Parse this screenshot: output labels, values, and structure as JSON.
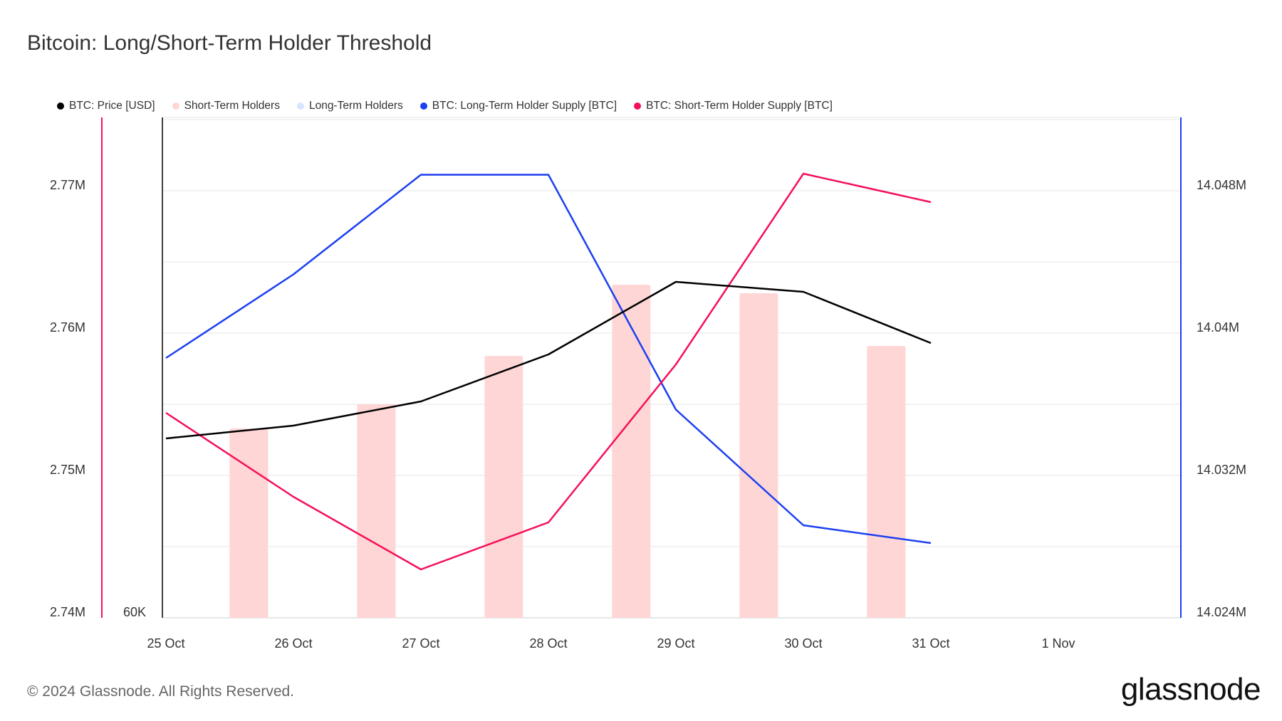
{
  "title": "Bitcoin: Long/Short-Term Holder Threshold",
  "footer": "© 2024 Glassnode. All Rights Reserved.",
  "logo": "glassnode",
  "legend": [
    {
      "label": "BTC: Price [USD]",
      "color": "#000000"
    },
    {
      "label": "Short-Term Holders",
      "color": "#ffd6d6"
    },
    {
      "label": "Long-Term Holders",
      "color": "#d6e6ff"
    },
    {
      "label": "BTC: Long-Term Holder Supply [BTC]",
      "color": "#1c3ff0"
    },
    {
      "label": "BTC: Short-Term Holder Supply [BTC]",
      "color": "#f50f5a"
    }
  ],
  "chart_data": {
    "type": "line",
    "x": [
      "25 Oct",
      "26 Oct",
      "27 Oct",
      "28 Oct",
      "29 Oct",
      "30 Oct",
      "31 Oct",
      "1 Nov"
    ],
    "xlabel": "",
    "grid": true,
    "left_axis": {
      "ticks": [
        "2.77M",
        "2.76M",
        "2.75M",
        "2.74M"
      ],
      "range": [
        2.74,
        2.775
      ],
      "unit": "M"
    },
    "price_axis": {
      "ticks": [
        "60K"
      ]
    },
    "right_axis": {
      "ticks": [
        "14.048M",
        "14.04M",
        "14.032M",
        "14.024M"
      ],
      "range": [
        14.024,
        14.052
      ],
      "unit": "M"
    },
    "series": [
      {
        "name": "BTC: Long-Term Holder Supply [BTC]",
        "axis": "right",
        "color": "#1c3ff0",
        "x": [
          "25 Oct",
          "26 Oct",
          "27 Oct",
          "28 Oct",
          "29 Oct",
          "30 Oct",
          "31 Oct"
        ],
        "values": [
          14.0386,
          14.0433,
          14.0489,
          14.0489,
          14.0357,
          14.0292,
          14.0282
        ]
      },
      {
        "name": "BTC: Short-Term Holder Supply [BTC]",
        "axis": "left",
        "color": "#f50f5a",
        "x": [
          "25 Oct",
          "26 Oct",
          "27 Oct",
          "28 Oct",
          "29 Oct",
          "30 Oct",
          "31 Oct"
        ],
        "values": [
          2.7544,
          2.7485,
          2.7434,
          2.7467,
          2.7578,
          2.7712,
          2.7692
        ]
      },
      {
        "name": "BTC: Price [USD]",
        "axis": "left",
        "color": "#000000",
        "x": [
          "25 Oct",
          "26 Oct",
          "27 Oct",
          "28 Oct",
          "29 Oct",
          "30 Oct",
          "31 Oct"
        ],
        "values": [
          2.7526,
          2.7535,
          2.7552,
          2.7585,
          2.7636,
          2.7629,
          2.7593
        ]
      },
      {
        "name": "Short-Term Holders",
        "type": "bar",
        "axis": "left",
        "color": "#ffd6d6",
        "x": [
          "25 Oct",
          "26 Oct",
          "27 Oct",
          "28 Oct",
          "29 Oct",
          "30 Oct"
        ],
        "values": [
          2.7533,
          2.755,
          2.7584,
          2.7634,
          2.7628,
          2.7591
        ]
      }
    ]
  }
}
